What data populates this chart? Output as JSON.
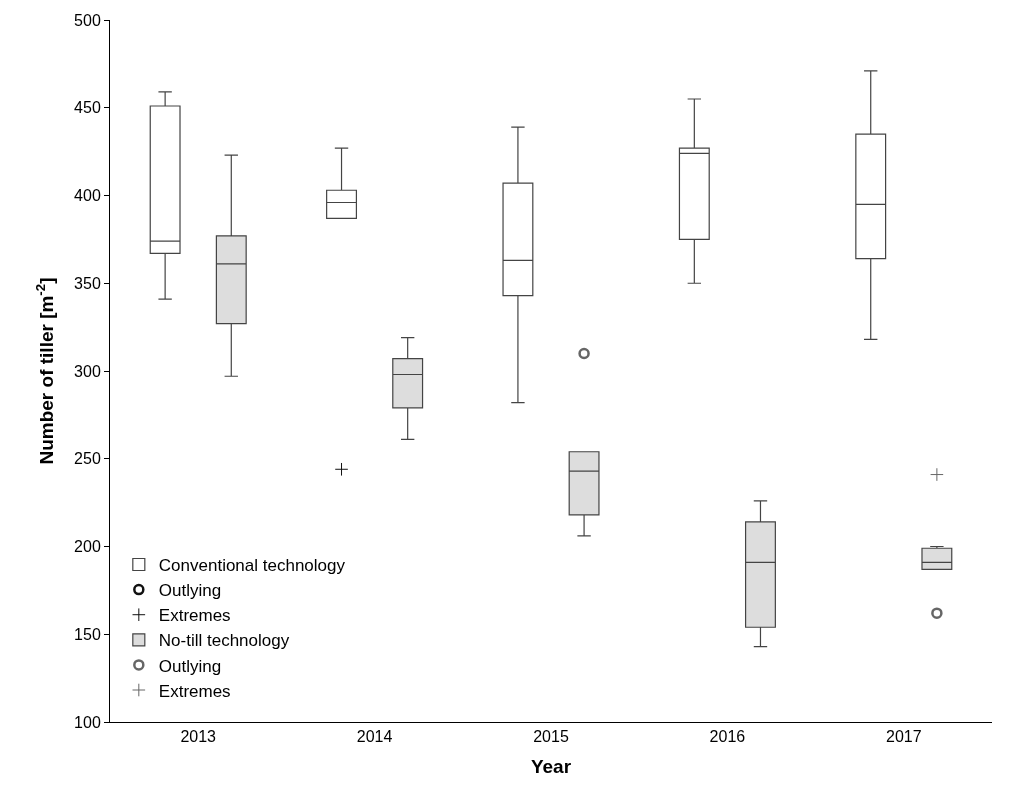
{
  "chart_data": {
    "type": "box",
    "xlabel": "Year",
    "ylabel": "Number of tiller [m$^{-2}$]",
    "categories": [
      "2013",
      "2014",
      "2015",
      "2016",
      "2017"
    ],
    "ylim": [
      100,
      500
    ],
    "yticks": [
      100,
      150,
      200,
      250,
      300,
      350,
      400,
      450,
      500
    ],
    "legend": "bottom left",
    "series": [
      {
        "name": "Conventional technology",
        "color": "#ffffff",
        "boxes": [
          {
            "low": 341,
            "q1": 367,
            "median": 374,
            "q3": 451,
            "high": 459
          },
          {
            "low": 387,
            "q1": 387,
            "median": 396,
            "q3": 403,
            "high": 427
          },
          {
            "low": 282,
            "q1": 343,
            "median": 363,
            "q3": 407,
            "high": 439
          },
          {
            "low": 350,
            "q1": 375,
            "median": 424,
            "q3": 427,
            "high": 455
          },
          {
            "low": 318,
            "q1": 364,
            "median": 395,
            "q3": 435,
            "high": 471
          }
        ]
      },
      {
        "name": "Outlying",
        "type": "scatter",
        "marker": "circle",
        "color": "#111111",
        "values": [
          null,
          null,
          null,
          null,
          null
        ]
      },
      {
        "name": "Extremes",
        "type": "scatter",
        "marker": "cross",
        "color": "#111111",
        "values": [
          null,
          244,
          null,
          null,
          null
        ]
      },
      {
        "name": "No-till technology",
        "color": "#dddddd",
        "boxes": [
          {
            "low": 297,
            "q1": 327,
            "median": 361,
            "q3": 377,
            "high": 423
          },
          {
            "low": 261,
            "q1": 279,
            "median": 298,
            "q3": 307,
            "high": 319
          },
          {
            "low": 206,
            "q1": 218,
            "median": 243,
            "q3": 254,
            "high": 254
          },
          {
            "low": 143,
            "q1": 154,
            "median": 191,
            "q3": 214,
            "high": 226
          },
          {
            "low": 187,
            "q1": 187,
            "median": 191,
            "q3": 199,
            "high": 200
          }
        ]
      },
      {
        "name": "Outlying",
        "type": "scatter",
        "marker": "circle",
        "color": "#666666",
        "values": [
          null,
          null,
          310,
          null,
          162
        ]
      },
      {
        "name": "Extremes",
        "type": "scatter",
        "marker": "cross",
        "color": "#666666",
        "values": [
          null,
          null,
          null,
          null,
          241
        ]
      }
    ]
  }
}
